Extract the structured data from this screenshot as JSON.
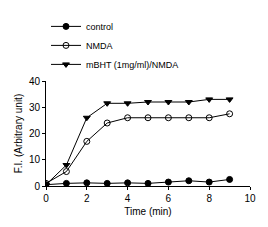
{
  "chart_data": {
    "type": "line",
    "x_label": "Time (min)",
    "y_label": "F.I. (Arbitrary unit)",
    "x": [
      0,
      1,
      2,
      3,
      4,
      5,
      6,
      7,
      8,
      9
    ],
    "series": [
      {
        "name": "control",
        "color": "#000000",
        "marker": "circle",
        "values": [
          0.5,
          1,
          1.2,
          1,
          1.2,
          1,
          1.5,
          2,
          1.5,
          2.5
        ]
      },
      {
        "name": "NMDA",
        "color": "#000000",
        "marker": "circle-open",
        "values": [
          1,
          5.5,
          17,
          24,
          26,
          26,
          26,
          26,
          26,
          27.5
        ]
      },
      {
        "name": "mBHT (1mg/ml)/NMDA",
        "color": "#000000",
        "marker": "triangle-down",
        "values": [
          0.5,
          8,
          26,
          31.5,
          31.5,
          32,
          32,
          32,
          33,
          33
        ]
      }
    ],
    "xlim": [
      0,
      10
    ],
    "xticks": [
      0,
      2,
      4,
      6,
      8,
      10
    ],
    "ylim": [
      0,
      40
    ],
    "yticks": [
      0,
      10,
      20,
      30,
      40
    ],
    "grid": false,
    "legend": "top left"
  }
}
